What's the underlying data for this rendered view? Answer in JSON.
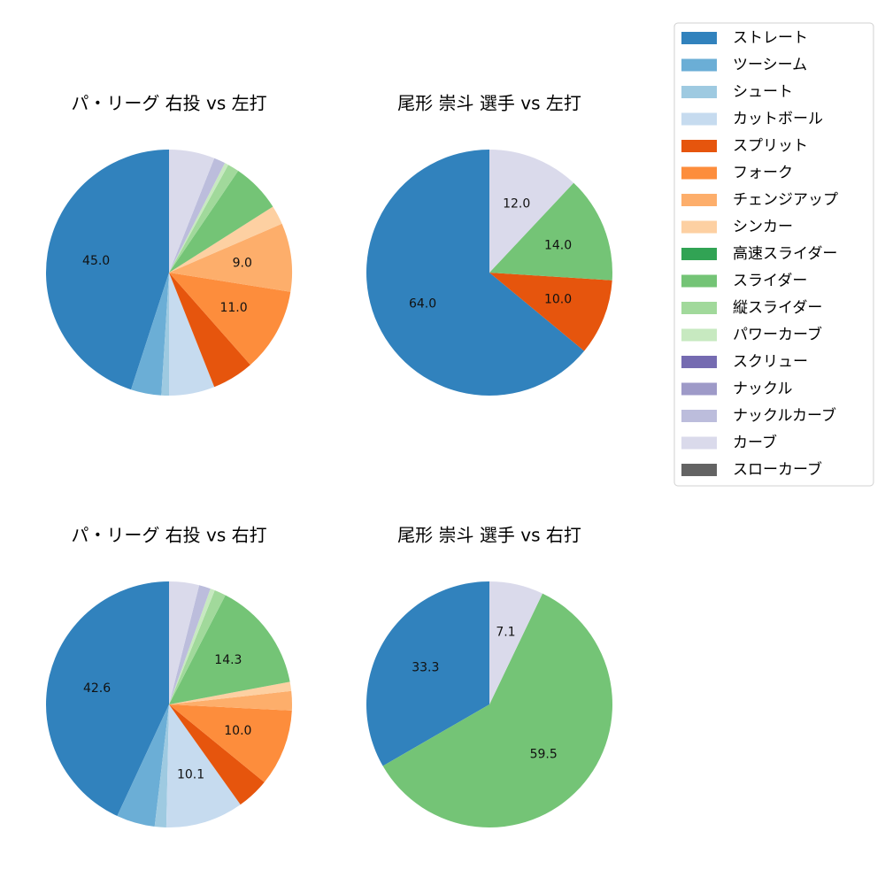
{
  "legend": {
    "items": [
      {
        "label": "ストレート",
        "color": "#3182bd"
      },
      {
        "label": "ツーシーム",
        "color": "#6baed6"
      },
      {
        "label": "シュート",
        "color": "#9ecae1"
      },
      {
        "label": "カットボール",
        "color": "#c6dbef"
      },
      {
        "label": "スプリット",
        "color": "#e6550d"
      },
      {
        "label": "フォーク",
        "color": "#fd8d3c"
      },
      {
        "label": "チェンジアップ",
        "color": "#fdae6b"
      },
      {
        "label": "シンカー",
        "color": "#fdd0a2"
      },
      {
        "label": "高速スライダー",
        "color": "#31a354"
      },
      {
        "label": "スライダー",
        "color": "#74c476"
      },
      {
        "label": "縦スライダー",
        "color": "#a1d99b"
      },
      {
        "label": "パワーカーブ",
        "color": "#c7e9c0"
      },
      {
        "label": "スクリュー",
        "color": "#756bb1"
      },
      {
        "label": "ナックル",
        "color": "#9e9ac8"
      },
      {
        "label": "ナックルカーブ",
        "color": "#bcbddc"
      },
      {
        "label": "カーブ",
        "color": "#dadaeb"
      },
      {
        "label": "スローカーブ",
        "color": "#636363"
      }
    ]
  },
  "chart_data": [
    {
      "type": "pie",
      "title": "パ・リーグ 右投 vs 左打",
      "slices": [
        {
          "label": "ストレート",
          "value": 45.0,
          "text": "45.0"
        },
        {
          "label": "ツーシーム",
          "value": 4.0,
          "text": ""
        },
        {
          "label": "シュート",
          "value": 1.0,
          "text": ""
        },
        {
          "label": "カットボール",
          "value": 6.0,
          "text": ""
        },
        {
          "label": "スプリット",
          "value": 5.5,
          "text": ""
        },
        {
          "label": "フォーク",
          "value": 11.0,
          "text": "11.0"
        },
        {
          "label": "チェンジアップ",
          "value": 9.0,
          "text": "9.0"
        },
        {
          "label": "シンカー",
          "value": 2.5,
          "text": ""
        },
        {
          "label": "スライダー",
          "value": 6.5,
          "text": ""
        },
        {
          "label": "縦スライダー",
          "value": 1.5,
          "text": ""
        },
        {
          "label": "パワーカーブ",
          "value": 0.5,
          "text": ""
        },
        {
          "label": "ナックルカーブ",
          "value": 1.5,
          "text": ""
        },
        {
          "label": "カーブ",
          "value": 6.0,
          "text": ""
        }
      ]
    },
    {
      "type": "pie",
      "title": "尾形 崇斗 選手 vs 左打",
      "slices": [
        {
          "label": "ストレート",
          "value": 64.0,
          "text": "64.0"
        },
        {
          "label": "スプリット",
          "value": 10.0,
          "text": "10.0"
        },
        {
          "label": "スライダー",
          "value": 14.0,
          "text": "14.0"
        },
        {
          "label": "カーブ",
          "value": 12.0,
          "text": "12.0"
        }
      ]
    },
    {
      "type": "pie",
      "title": "パ・リーグ 右投 vs 右打",
      "slices": [
        {
          "label": "ストレート",
          "value": 42.6,
          "text": "42.6"
        },
        {
          "label": "ツーシーム",
          "value": 5.0,
          "text": ""
        },
        {
          "label": "シュート",
          "value": 1.5,
          "text": ""
        },
        {
          "label": "カットボール",
          "value": 10.1,
          "text": "10.1"
        },
        {
          "label": "スプリット",
          "value": 4.2,
          "text": ""
        },
        {
          "label": "フォーク",
          "value": 10.0,
          "text": "10.0"
        },
        {
          "label": "チェンジアップ",
          "value": 2.5,
          "text": ""
        },
        {
          "label": "シンカー",
          "value": 1.2,
          "text": ""
        },
        {
          "label": "スライダー",
          "value": 14.3,
          "text": "14.3"
        },
        {
          "label": "縦スライダー",
          "value": 1.5,
          "text": ""
        },
        {
          "label": "パワーカーブ",
          "value": 0.6,
          "text": ""
        },
        {
          "label": "ナックルカーブ",
          "value": 1.5,
          "text": ""
        },
        {
          "label": "カーブ",
          "value": 3.9,
          "text": ""
        }
      ]
    },
    {
      "type": "pie",
      "title": "尾形 崇斗 選手 vs 右打",
      "slices": [
        {
          "label": "ストレート",
          "value": 33.3,
          "text": "33.3"
        },
        {
          "label": "スライダー",
          "value": 59.5,
          "text": "59.5"
        },
        {
          "label": "カーブ",
          "value": 7.1,
          "text": "7.1"
        }
      ]
    }
  ]
}
